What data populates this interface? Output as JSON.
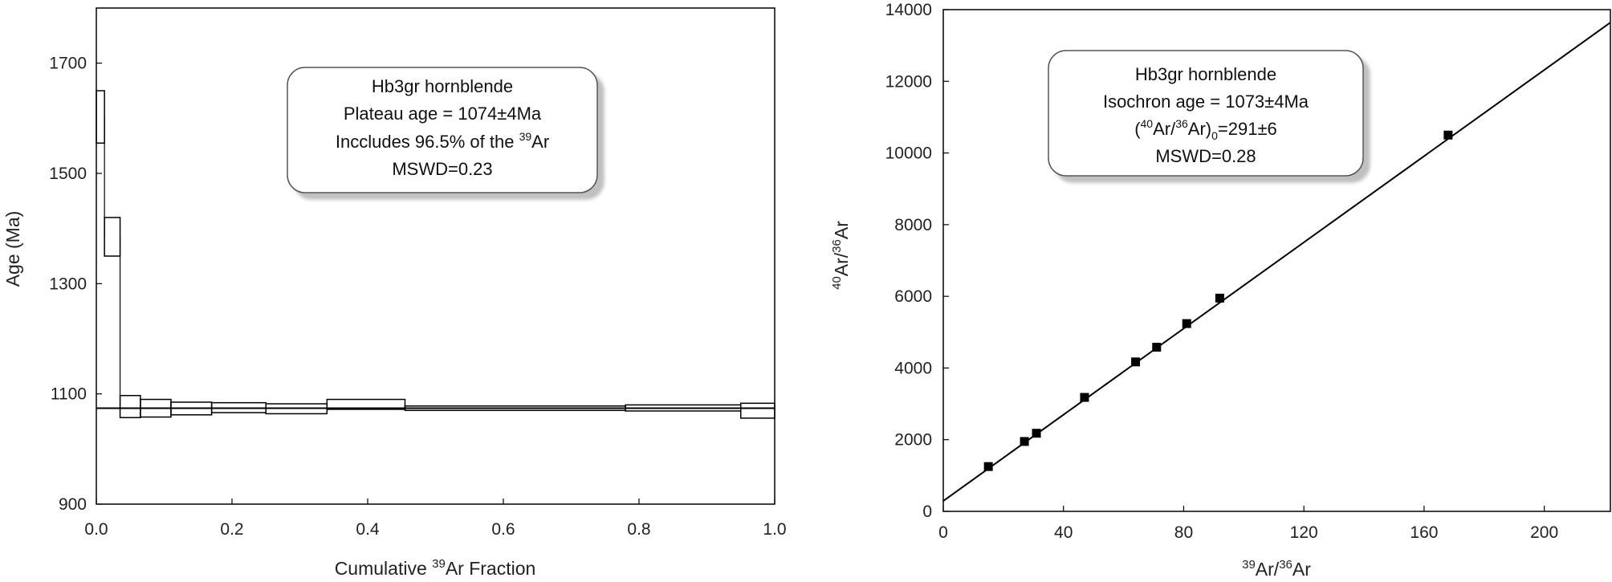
{
  "chart_data": [
    {
      "type": "step",
      "xlabel_pre": "Cumulative ",
      "xlabel_sup": "39",
      "xlabel_post": "Ar Fraction",
      "ylabel": "Age (Ma)",
      "xlim": [
        0.0,
        1.0
      ],
      "ylim": [
        900,
        1800
      ],
      "xticks": [
        0.0,
        0.2,
        0.4,
        0.6,
        0.8,
        1.0
      ],
      "xtick_labels": [
        "0.0",
        "0.2",
        "0.4",
        "0.6",
        "0.8",
        "1.0"
      ],
      "yticks": [
        900,
        1100,
        1300,
        1500,
        1700
      ],
      "ytick_labels": [
        "900",
        "1100",
        "1300",
        "1500",
        "1700"
      ],
      "plateau_age": 1074,
      "steps": [
        {
          "x0": 0.0,
          "x1": 0.012,
          "lo": 1555,
          "hi": 1650
        },
        {
          "x0": 0.012,
          "x1": 0.035,
          "lo": 1350,
          "hi": 1420
        },
        {
          "x0": 0.035,
          "x1": 0.065,
          "lo": 1057,
          "hi": 1097
        },
        {
          "x0": 0.065,
          "x1": 0.11,
          "lo": 1058,
          "hi": 1090
        },
        {
          "x0": 0.11,
          "x1": 0.17,
          "lo": 1062,
          "hi": 1085
        },
        {
          "x0": 0.17,
          "x1": 0.25,
          "lo": 1066,
          "hi": 1084
        },
        {
          "x0": 0.25,
          "x1": 0.34,
          "lo": 1064,
          "hi": 1082
        },
        {
          "x0": 0.34,
          "x1": 0.455,
          "lo": 1072,
          "hi": 1090
        },
        {
          "x0": 0.455,
          "x1": 0.78,
          "lo": 1070,
          "hi": 1078
        },
        {
          "x0": 0.78,
          "x1": 0.95,
          "lo": 1069,
          "hi": 1080
        },
        {
          "x0": 0.95,
          "x1": 1.0,
          "lo": 1056,
          "hi": 1083
        }
      ],
      "legend": {
        "line1": "Hb3gr  hornblende",
        "line2": "Plateau age = 1074±4Ma",
        "line3_pre": "Inccludes 96.5% of the ",
        "line3_sup": "39",
        "line3_post": "Ar",
        "line4": "MSWD=0.23"
      }
    },
    {
      "type": "scatter",
      "xlabel_sup1": "39",
      "xlabel_mid": "Ar/",
      "xlabel_sup2": "36",
      "xlabel_post": "Ar",
      "ylabel_sup1": "40",
      "ylabel_mid": "Ar/",
      "ylabel_sup2": "36",
      "ylabel_post": "Ar",
      "xlim": [
        0,
        222
      ],
      "ylim": [
        0,
        14000
      ],
      "xticks": [
        0,
        40,
        80,
        120,
        160,
        200
      ],
      "xtick_labels": [
        "0",
        "40",
        "80",
        "120",
        "160",
        "200"
      ],
      "yticks": [
        0,
        2000,
        4000,
        6000,
        8000,
        10000,
        12000,
        14000
      ],
      "ytick_labels": [
        "0",
        "2000",
        "4000",
        "6000",
        "8000",
        "10000",
        "12000",
        "14000"
      ],
      "points": [
        {
          "x": 15,
          "y": 1250
        },
        {
          "x": 27,
          "y": 1950
        },
        {
          "x": 31,
          "y": 2180
        },
        {
          "x": 47,
          "y": 3180
        },
        {
          "x": 64,
          "y": 4170
        },
        {
          "x": 71,
          "y": 4580
        },
        {
          "x": 81,
          "y": 5240
        },
        {
          "x": 92,
          "y": 5950
        },
        {
          "x": 168,
          "y": 10500
        }
      ],
      "fit_line": {
        "intercept": 291,
        "x_end": 222,
        "y_end": 13640
      },
      "legend": {
        "line1": "Hb3gr  hornblende",
        "line2": "Isochron age = 1073±4Ma",
        "line3_open": "(",
        "line3_sup1": "40",
        "line3_mid": "Ar/",
        "line3_sup2": "36",
        "line3_ar": "Ar)",
        "line3_sub": "0",
        "line3_post": "=291±6",
        "line4": "MSWD=0.28"
      }
    }
  ]
}
